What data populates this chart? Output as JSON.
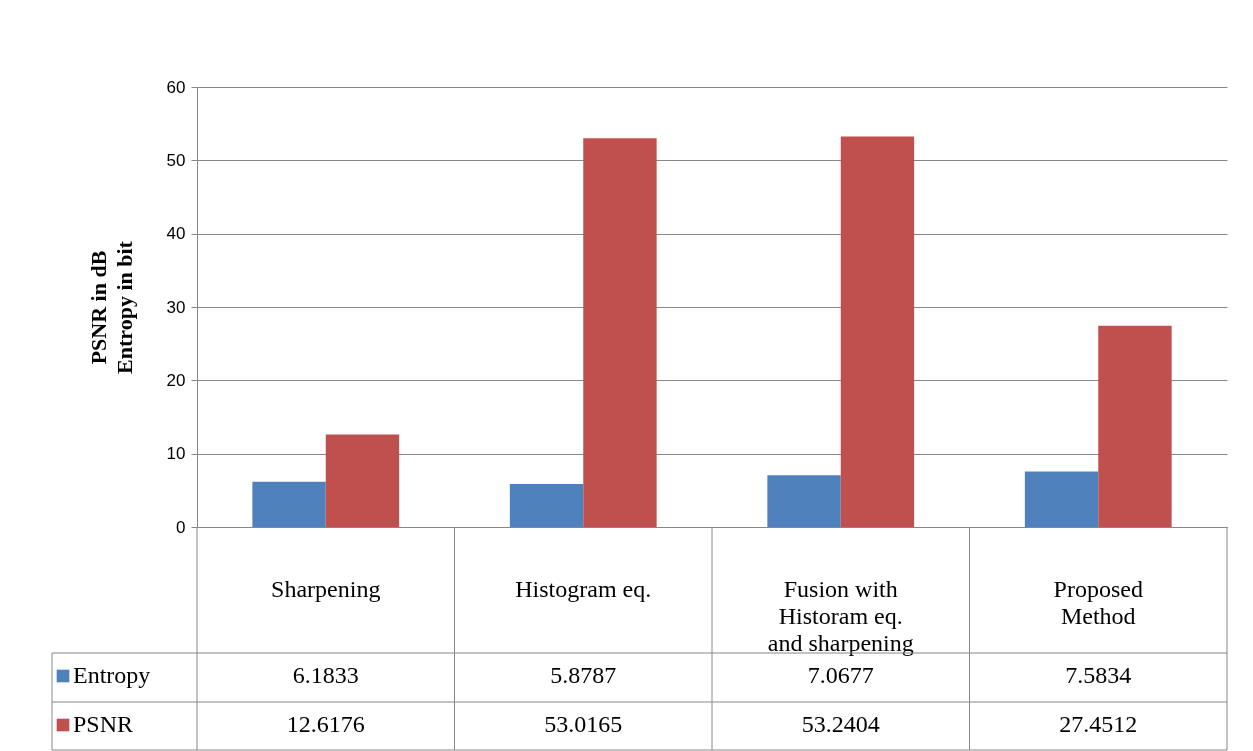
{
  "chart_data": {
    "type": "bar",
    "ylabel": "PSNR in dB\nEntropy in bit",
    "categories": [
      "Sharpening",
      "Histogram eq.",
      "Fusion with Historam eq. and sharpening",
      "Proposed Method"
    ],
    "series": [
      {
        "name": "Entropy",
        "color": "#4f81bd",
        "values": [
          6.1833,
          5.8787,
          7.0677,
          7.5834
        ]
      },
      {
        "name": "PSNR",
        "color": "#c0504d",
        "values": [
          12.6176,
          53.0165,
          53.2404,
          27.4512
        ]
      }
    ],
    "ylim": [
      0,
      60
    ],
    "yticks": [
      0,
      10,
      20,
      30,
      40,
      50,
      60
    ],
    "grid": "y",
    "legend": "bottom left",
    "data_labels": true
  }
}
